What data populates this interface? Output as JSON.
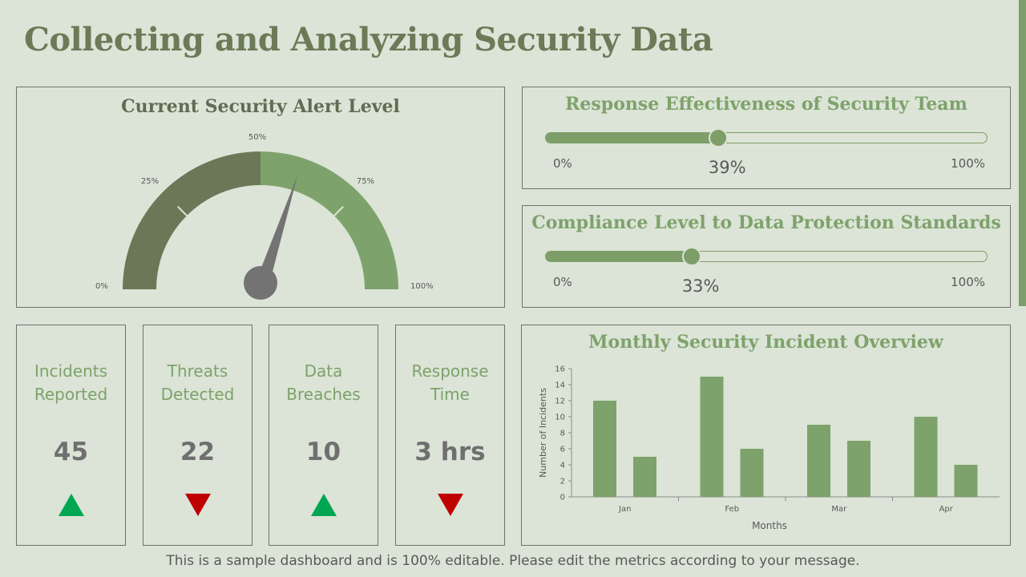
{
  "page": {
    "title": "Collecting and Analyzing Security Data",
    "footnote": "This is a sample dashboard and is 100% editable. Please edit the metrics according to your message."
  },
  "gauge": {
    "title": "Current Security Alert Level",
    "value_percent": 60,
    "labels": [
      "0%",
      "25%",
      "50%",
      "75%",
      "100%"
    ],
    "colors": {
      "low": "#6b7757",
      "high": "#7ea26b",
      "needle": "#737373"
    }
  },
  "sliders": [
    {
      "title": "Response Effectiveness of Security Team",
      "value": 39,
      "value_label": "39%",
      "min_label": "0%",
      "max_label": "100%"
    },
    {
      "title": "Compliance Level to Data Protection Standards",
      "value": 33,
      "value_label": "33%",
      "min_label": "0%",
      "max_label": "100%"
    }
  ],
  "kpis": [
    {
      "line1": "Incidents",
      "line2": "Reported",
      "value": "45",
      "trend": "up",
      "color": "#00a651"
    },
    {
      "line1": "Threats",
      "line2": "Detected",
      "value": "22",
      "trend": "down",
      "color": "#c00000"
    },
    {
      "line1": "Data",
      "line2": "Breaches",
      "value": "10",
      "trend": "up",
      "color": "#00a651"
    },
    {
      "line1": "Response",
      "line2": "Time",
      "value": "3 hrs",
      "trend": "down",
      "color": "#c00000"
    }
  ],
  "chart": {
    "title": "Monthly Security Incident Overview"
  },
  "chart_data": {
    "type": "bar",
    "categories": [
      "Jan",
      "Feb",
      "Mar",
      "Apr"
    ],
    "series": [
      {
        "values": [
          12,
          15,
          9,
          10
        ]
      },
      {
        "values": [
          5,
          6,
          7,
          4
        ]
      }
    ],
    "xlabel": "Months",
    "ylabel": "Number of Incidents",
    "ylim": [
      0,
      16
    ],
    "yticks": [
      0,
      2,
      4,
      6,
      8,
      10,
      12,
      14,
      16
    ],
    "bar_color": "#7ea26b",
    "grid": false,
    "legend": "none"
  }
}
